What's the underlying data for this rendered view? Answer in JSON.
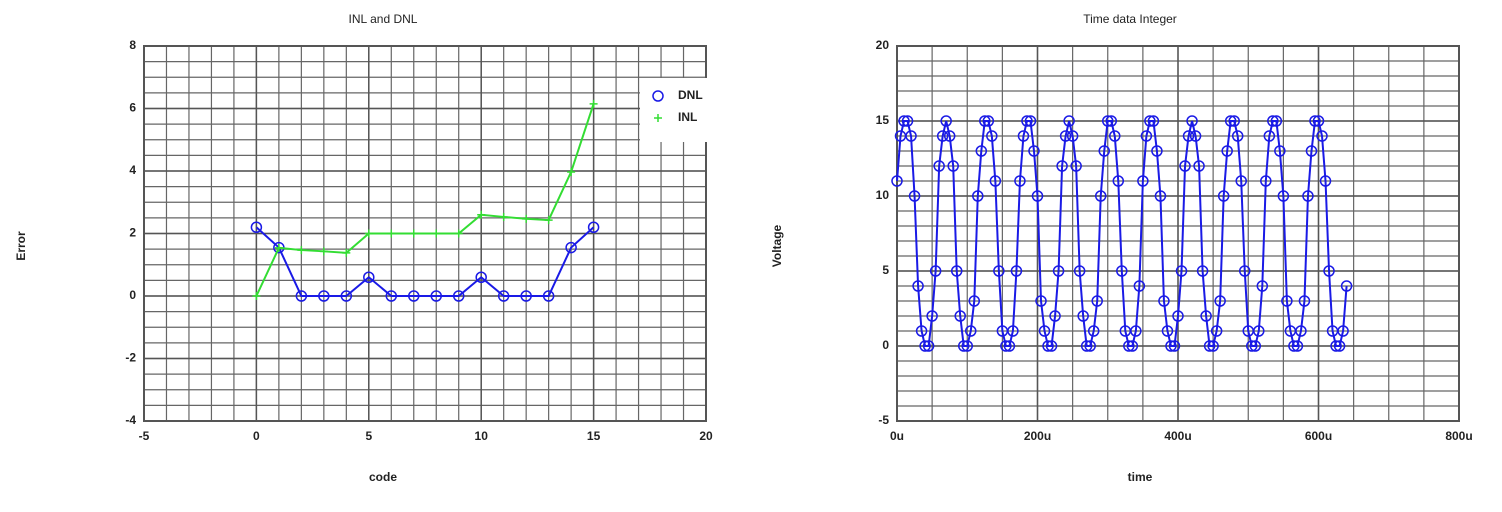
{
  "chart_data": [
    {
      "type": "line",
      "title": "INL and DNL",
      "x_label": "code",
      "y_label": "Error",
      "x": [
        0,
        1,
        2,
        3,
        4,
        5,
        6,
        7,
        8,
        9,
        10,
        11,
        12,
        13,
        14,
        15
      ],
      "series": [
        {
          "name": "DNL",
          "color": "#1a1ae6",
          "marker": "circle",
          "values": [
            2.2,
            1.55,
            0,
            0,
            0,
            0.6,
            0,
            0,
            0,
            0,
            0.6,
            0,
            0,
            0,
            1.55,
            2.2
          ]
        },
        {
          "name": "INL",
          "color": "#33dd33",
          "marker": "plus",
          "values": [
            0,
            1.54,
            1.47,
            1.43,
            1.38,
            2.0,
            2.0,
            2.0,
            2.0,
            2.0,
            2.6,
            2.53,
            2.47,
            2.43,
            3.97,
            6.15
          ]
        }
      ],
      "xlim": [
        -5,
        20
      ],
      "xticks": [
        -5,
        0,
        5,
        10,
        15,
        20
      ],
      "ylim": [
        -4,
        8
      ],
      "yticks": [
        -4,
        -2,
        0,
        2,
        4,
        6,
        8
      ],
      "grid": true,
      "grid_subdivisions": {
        "x": 5,
        "y": 4
      },
      "legend": "upper right"
    },
    {
      "type": "line",
      "title": "Time data Integer",
      "x_label": "time",
      "y_label": "Voltage",
      "x": [
        0,
        5,
        10,
        15,
        20,
        25,
        30,
        35,
        40,
        45,
        50,
        55,
        60,
        65,
        70,
        75,
        80,
        85,
        90,
        95,
        100,
        105,
        110,
        115,
        120,
        125,
        130,
        135,
        140,
        145,
        150,
        155,
        160,
        165,
        170,
        175,
        180,
        185,
        190,
        195,
        200,
        205,
        210,
        215,
        220,
        225,
        230,
        235,
        240,
        245,
        250,
        255,
        260,
        265,
        270,
        275,
        280,
        285,
        290,
        295,
        300,
        305,
        310,
        315,
        320,
        325,
        330,
        335,
        340,
        345,
        350,
        355,
        360,
        365,
        370,
        375,
        380,
        385,
        390,
        395,
        400,
        405,
        410,
        415,
        420,
        425,
        430,
        435,
        440,
        445,
        450,
        455,
        460,
        465,
        470,
        475,
        480,
        485,
        490,
        495,
        500,
        505,
        510,
        515,
        520,
        525,
        530,
        535,
        540,
        545,
        550,
        555,
        560,
        565,
        570,
        575,
        580,
        585,
        590,
        595,
        600,
        605,
        610,
        615,
        620,
        625,
        630,
        635,
        640
      ],
      "series": [
        {
          "color": "#1a1ae6",
          "marker": "circle",
          "values": [
            11,
            14,
            15,
            15,
            14,
            10,
            4,
            1,
            0,
            0,
            2,
            5,
            12,
            14,
            15,
            14,
            12,
            5,
            2,
            0,
            0,
            1,
            3,
            10,
            13,
            15,
            15,
            14,
            11,
            5,
            1,
            0,
            0,
            1,
            5,
            11,
            14,
            15,
            15,
            13,
            10,
            3,
            1,
            0,
            0,
            2,
            5,
            12,
            14,
            15,
            14,
            12,
            5,
            2,
            0,
            0,
            1,
            3,
            10,
            13,
            15,
            15,
            14,
            11,
            5,
            1,
            0,
            0,
            1,
            4,
            11,
            14,
            15,
            15,
            13,
            10,
            3,
            1,
            0,
            0,
            2,
            5,
            12,
            14,
            15,
            14,
            12,
            5,
            2,
            0,
            0,
            1,
            3,
            10,
            13,
            15,
            15,
            14,
            11,
            5,
            1,
            0,
            0,
            1,
            4,
            11,
            14,
            15,
            15,
            13,
            10,
            3,
            1,
            0,
            0,
            1,
            3,
            10,
            13,
            15,
            15,
            14,
            11,
            5,
            1,
            0,
            0,
            1,
            4
          ]
        }
      ],
      "xlim": [
        0,
        800
      ],
      "xticks": [
        {
          "value": 0,
          "label": "0u"
        },
        {
          "value": 200,
          "label": "200u"
        },
        {
          "value": 400,
          "label": "400u"
        },
        {
          "value": 600,
          "label": "600u"
        },
        {
          "value": 800,
          "label": "800u"
        }
      ],
      "ylim": [
        -5,
        20
      ],
      "yticks": [
        -5,
        0,
        5,
        10,
        15,
        20
      ],
      "grid": true,
      "grid_subdivisions": {
        "x": 4,
        "y": 5
      }
    }
  ]
}
